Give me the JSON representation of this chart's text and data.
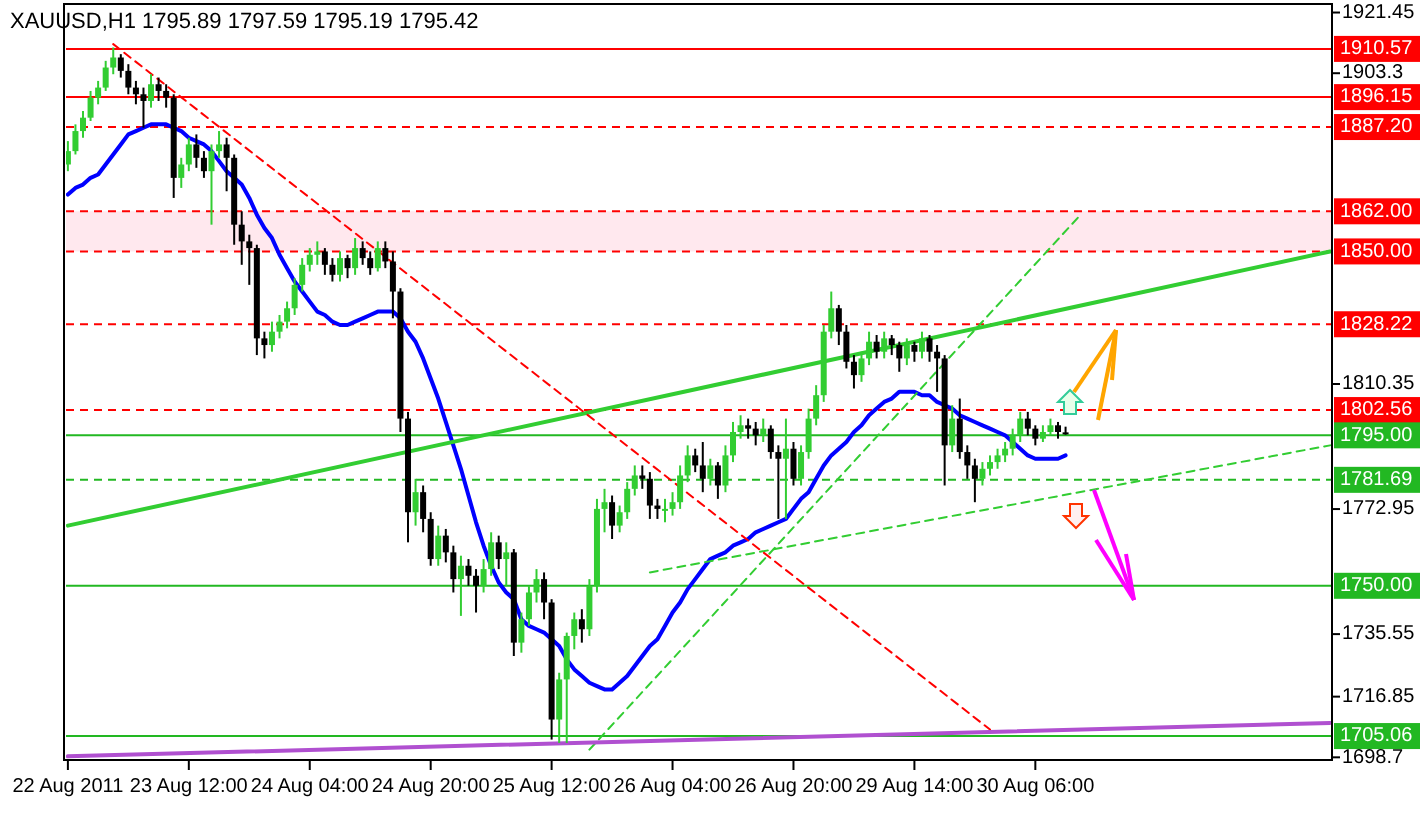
{
  "chart_data": {
    "type": "candlestick",
    "title": "XAUUSD,H1  1795.89 1797.59 1795.19 1795.42",
    "categories": [
      "22 Aug 2011",
      null,
      null,
      null,
      null,
      null,
      null,
      null,
      null,
      null,
      null,
      null,
      null,
      null,
      null,
      null,
      "23 Aug 12:00",
      null,
      null,
      null,
      null,
      null,
      null,
      null,
      null,
      null,
      null,
      null,
      null,
      null,
      null,
      null,
      "24 Aug 04:00",
      null,
      null,
      null,
      null,
      null,
      null,
      null,
      null,
      null,
      null,
      null,
      null,
      null,
      null,
      null,
      "24 Aug 20:00",
      null,
      null,
      null,
      null,
      null,
      null,
      null,
      null,
      null,
      null,
      null,
      null,
      null,
      null,
      null,
      "25 Aug 12:00",
      null,
      null,
      null,
      null,
      null,
      null,
      null,
      null,
      null,
      null,
      null,
      null,
      null,
      null,
      null,
      "26 Aug 04:00",
      null,
      null,
      null,
      null,
      null,
      null,
      null,
      null,
      null,
      null,
      null,
      null,
      null,
      null,
      null,
      "26 Aug 20:00",
      null,
      null,
      null,
      null,
      null,
      null,
      null,
      null,
      null,
      null,
      null,
      null,
      null,
      null,
      null,
      "29 Aug 14:00",
      null,
      null,
      null,
      null,
      null,
      null,
      null,
      null,
      null,
      null,
      null,
      null,
      null,
      null,
      null,
      "30 Aug 06:00",
      null,
      null,
      null,
      null,
      null,
      null,
      null,
      null,
      null,
      null,
      null,
      null,
      null,
      null,
      null,
      null,
      null,
      null,
      null,
      null,
      null,
      null,
      null,
      null,
      null,
      null,
      null,
      null,
      null,
      null,
      null,
      null,
      null,
      null,
      null,
      null,
      null,
      null,
      null
    ],
    "ylim": [
      1697.9,
      1924.0
    ],
    "yticks": [
      1921.45,
      1903.3,
      1810.35,
      1772.95,
      1735.55,
      1716.85,
      1698.7
    ],
    "colors": [
      "#32cd32",
      "#32cd32",
      "#32cd32",
      "#32cd32",
      "#32cd32",
      "#32cd32",
      "#32cd32",
      "#000000",
      "#000000",
      "#000000",
      "#000000",
      "#32cd32",
      "#000000",
      "#000000",
      "#000000",
      "#32cd32",
      "#32cd32",
      "#000000",
      "#000000",
      "#32cd32",
      "#32cd32",
      "#000000",
      "#000000",
      "#000000",
      "#000000",
      "#000000",
      "#000000",
      "#32cd32",
      "#32cd32",
      "#32cd32",
      "#32cd32",
      "#32cd32",
      "#32cd32",
      "#32cd32",
      "#000000",
      "#000000",
      "#32cd32",
      "#000000",
      "#32cd32",
      "#000000",
      "#000000",
      "#32cd32",
      "#000000",
      "#000000",
      "#000000",
      "#000000",
      "#32cd32",
      "#000000",
      "#000000",
      "#32cd32",
      "#000000",
      "#000000",
      "#32cd32",
      "#000000",
      "#000000",
      "#32cd32",
      "#32cd32",
      "#000000",
      "#32cd32",
      "#000000",
      "#32cd32",
      "#32cd32",
      "#32cd32",
      "#000000",
      "#000000",
      "#32cd32",
      "#32cd32",
      "#32cd32",
      "#000000",
      "#32cd32",
      "#32cd32",
      "#32cd32",
      "#000000",
      "#32cd32",
      "#32cd32",
      "#32cd32",
      "#000000",
      "#000000",
      "#000000",
      "#32cd32",
      "#32cd32",
      "#32cd32",
      "#32cd32",
      "#000000",
      "#000000",
      "#32cd32",
      "#000000",
      "#32cd32",
      "#32cd32",
      "#32cd32",
      "#000000",
      "#000000",
      "#32cd32",
      "#000000",
      "#000000",
      "#32cd32",
      "#000000",
      "#32cd32",
      "#32cd32",
      "#32cd32",
      "#32cd32",
      "#32cd32",
      "#000000",
      "#000000",
      "#000000",
      "#32cd32",
      "#32cd32",
      "#000000",
      "#32cd32",
      "#000000",
      "#000000",
      "#32cd32",
      "#000000",
      "#32cd32",
      "#000000",
      "#000000",
      "#000000",
      "#32cd32",
      "#000000",
      "#000000",
      "#000000",
      "#32cd32",
      "#32cd32",
      "#32cd32",
      "#32cd32",
      "#32cd32",
      "#32cd32",
      "#000000",
      "#000000",
      "#32cd32",
      "#32cd32",
      "#000000",
      "#000000",
      null,
      null,
      null,
      null,
      null,
      null,
      null,
      null,
      null,
      null,
      null,
      null,
      null,
      null,
      null,
      null,
      null,
      null,
      null,
      null,
      null,
      null,
      null,
      null,
      null,
      null,
      null,
      null,
      null,
      null,
      null,
      null,
      null,
      null,
      null
    ],
    "ohlc": [
      [
        1876,
        1883,
        1874,
        1880
      ],
      [
        1880,
        1888,
        1879,
        1886
      ],
      [
        1886,
        1892,
        1884,
        1890
      ],
      [
        1890,
        1898,
        1889,
        1896
      ],
      [
        1896,
        1901,
        1894,
        1899
      ],
      [
        1899,
        1907,
        1898,
        1905
      ],
      [
        1905,
        1911,
        1903,
        1908
      ],
      [
        1908,
        1909,
        1902,
        1904
      ],
      [
        1904,
        1906,
        1897,
        1899
      ],
      [
        1899,
        1901,
        1894,
        1897
      ],
      [
        1897,
        1899,
        1887,
        1895
      ],
      [
        1895,
        1903,
        1893,
        1900
      ],
      [
        1900,
        1902,
        1895,
        1898
      ],
      [
        1898,
        1900,
        1893,
        1896
      ],
      [
        1896,
        1897,
        1866,
        1872
      ],
      [
        1872,
        1878,
        1869,
        1876
      ],
      [
        1876,
        1884,
        1874,
        1882
      ],
      [
        1882,
        1885,
        1875,
        1878
      ],
      [
        1878,
        1880,
        1872,
        1874
      ],
      [
        1874,
        1882,
        1858,
        1880
      ],
      [
        1880,
        1886,
        1878,
        1882
      ],
      [
        1882,
        1884,
        1868,
        1878
      ],
      [
        1878,
        1879,
        1852,
        1858
      ],
      [
        1858,
        1862,
        1846,
        1853
      ],
      [
        1853,
        1855,
        1840,
        1851
      ],
      [
        1851,
        1852,
        1819,
        1824
      ],
      [
        1824,
        1826,
        1818,
        1822
      ],
      [
        1822,
        1829,
        1820,
        1826
      ],
      [
        1826,
        1831,
        1824,
        1829
      ],
      [
        1829,
        1835,
        1827,
        1833
      ],
      [
        1833,
        1842,
        1831,
        1840
      ],
      [
        1840,
        1848,
        1838,
        1846
      ],
      [
        1846,
        1851,
        1844,
        1849
      ],
      [
        1849,
        1853,
        1846,
        1850
      ],
      [
        1850,
        1851,
        1843,
        1846
      ],
      [
        1846,
        1848,
        1841,
        1843
      ],
      [
        1843,
        1850,
        1841,
        1848
      ],
      [
        1848,
        1849,
        1842,
        1845
      ],
      [
        1845,
        1854,
        1843,
        1851
      ],
      [
        1851,
        1853,
        1846,
        1848
      ],
      [
        1848,
        1850,
        1843,
        1845
      ],
      [
        1845,
        1853,
        1844,
        1851
      ],
      [
        1851,
        1853,
        1845,
        1847
      ],
      [
        1847,
        1850,
        1830,
        1838
      ],
      [
        1838,
        1839,
        1796,
        1800
      ],
      [
        1800,
        1802,
        1763,
        1772
      ],
      [
        1772,
        1782,
        1768,
        1778
      ],
      [
        1778,
        1780,
        1766,
        1770
      ],
      [
        1770,
        1772,
        1756,
        1758
      ],
      [
        1758,
        1768,
        1756,
        1765
      ],
      [
        1765,
        1767,
        1757,
        1760
      ],
      [
        1760,
        1762,
        1748,
        1752
      ],
      [
        1752,
        1759,
        1741,
        1756
      ],
      [
        1756,
        1758,
        1750,
        1753
      ],
      [
        1753,
        1755,
        1742,
        1750
      ],
      [
        1750,
        1758,
        1748,
        1755
      ],
      [
        1755,
        1766,
        1753,
        1763
      ],
      [
        1763,
        1765,
        1755,
        1758
      ],
      [
        1758,
        1763,
        1750,
        1760
      ],
      [
        1760,
        1761,
        1729,
        1733
      ],
      [
        1733,
        1742,
        1730,
        1740
      ],
      [
        1740,
        1750,
        1738,
        1748
      ],
      [
        1748,
        1755,
        1745,
        1752
      ],
      [
        1752,
        1754,
        1740,
        1745
      ],
      [
        1745,
        1746,
        1704,
        1710
      ],
      [
        1710,
        1724,
        1703,
        1722
      ],
      [
        1722,
        1736,
        1703,
        1735
      ],
      [
        1735,
        1742,
        1731,
        1740
      ],
      [
        1740,
        1743,
        1733,
        1737
      ],
      [
        1737,
        1752,
        1735,
        1750
      ],
      [
        1750,
        1776,
        1748,
        1773
      ],
      [
        1773,
        1779,
        1766,
        1775
      ],
      [
        1775,
        1777,
        1764,
        1768
      ],
      [
        1768,
        1774,
        1766,
        1772
      ],
      [
        1772,
        1781,
        1770,
        1779
      ],
      [
        1779,
        1786,
        1777,
        1783
      ],
      [
        1783,
        1786,
        1779,
        1782
      ],
      [
        1782,
        1784,
        1770,
        1774
      ],
      [
        1774,
        1776,
        1770,
        1773
      ],
      [
        1773,
        1776,
        1769,
        1773
      ],
      [
        1773,
        1778,
        1771,
        1775
      ],
      [
        1775,
        1786,
        1773,
        1783
      ],
      [
        1783,
        1792,
        1781,
        1789
      ],
      [
        1789,
        1791,
        1784,
        1786
      ],
      [
        1786,
        1793,
        1778,
        1782
      ],
      [
        1782,
        1788,
        1780,
        1786
      ],
      [
        1786,
        1787,
        1776,
        1780
      ],
      [
        1780,
        1792,
        1778,
        1789
      ],
      [
        1789,
        1799,
        1787,
        1796
      ],
      [
        1796,
        1801,
        1794,
        1798
      ],
      [
        1798,
        1800,
        1794,
        1797
      ],
      [
        1797,
        1799,
        1792,
        1795
      ],
      [
        1795,
        1800,
        1793,
        1797
      ],
      [
        1797,
        1798,
        1788,
        1790
      ],
      [
        1790,
        1792,
        1770,
        1788
      ],
      [
        1788,
        1800,
        1770,
        1791
      ],
      [
        1791,
        1793,
        1780,
        1782
      ],
      [
        1782,
        1792,
        1780,
        1790
      ],
      [
        1790,
        1803,
        1788,
        1800
      ],
      [
        1800,
        1810,
        1798,
        1807
      ],
      [
        1807,
        1828,
        1805,
        1826
      ],
      [
        1826,
        1838,
        1824,
        1833
      ],
      [
        1833,
        1834,
        1822,
        1826
      ],
      [
        1826,
        1828,
        1815,
        1817
      ],
      [
        1817,
        1819,
        1809,
        1813
      ],
      [
        1813,
        1820,
        1811,
        1818
      ],
      [
        1818,
        1826,
        1816,
        1823
      ],
      [
        1823,
        1825,
        1818,
        1820
      ],
      [
        1820,
        1826,
        1818,
        1824
      ],
      [
        1824,
        1825,
        1819,
        1822
      ],
      [
        1822,
        1823,
        1814,
        1818
      ],
      [
        1818,
        1824,
        1816,
        1822
      ],
      [
        1822,
        1823,
        1817,
        1820
      ],
      [
        1820,
        1826,
        1818,
        1824
      ],
      [
        1824,
        1825,
        1817,
        1820
      ],
      [
        1820,
        1822,
        1808,
        1818
      ],
      [
        1818,
        1819,
        1780,
        1792
      ],
      [
        1792,
        1804,
        1790,
        1800
      ],
      [
        1800,
        1806,
        1788,
        1790
      ],
      [
        1790,
        1792,
        1782,
        1786
      ],
      [
        1786,
        1788,
        1775,
        1782
      ],
      [
        1782,
        1787,
        1780,
        1785
      ],
      [
        1785,
        1789,
        1783,
        1787
      ],
      [
        1787,
        1791,
        1785,
        1789
      ],
      [
        1789,
        1793,
        1787,
        1791
      ],
      [
        1791,
        1797,
        1789,
        1795
      ],
      [
        1795,
        1802,
        1793,
        1800
      ],
      [
        1800,
        1802,
        1795,
        1797
      ],
      [
        1797,
        1798,
        1792,
        1794
      ],
      [
        1794,
        1798,
        1793,
        1796
      ],
      [
        1796,
        1800,
        1795,
        1798
      ],
      [
        1798,
        1799,
        1794,
        1796
      ],
      [
        1795.89,
        1797.59,
        1795.19,
        1795.42
      ],
      null,
      null,
      null,
      null,
      null,
      null,
      null,
      null,
      null,
      null,
      null,
      null,
      null,
      null,
      null,
      null,
      null,
      null,
      null,
      null,
      null,
      null,
      null,
      null,
      null,
      null,
      null,
      null,
      null,
      null,
      null,
      null,
      null,
      null,
      null
    ],
    "series": [
      {
        "type": "line",
        "color": "#0000ff",
        "values": [
          1867,
          1869,
          1870,
          1872,
          1873,
          1876,
          1879,
          1882,
          1885,
          1886,
          1887,
          1888,
          1888,
          1888,
          1887,
          1886,
          1884,
          1883,
          1882,
          1880,
          1877,
          1874,
          1872,
          1870,
          1866,
          1861,
          1857,
          1854,
          1849,
          1845,
          1841,
          1838,
          1835,
          1832,
          1831,
          1829,
          1828,
          1828,
          1829,
          1830,
          1831,
          1832,
          1832,
          1832,
          1830,
          1826,
          1823,
          1818,
          1812,
          1806,
          1799,
          1792,
          1785,
          1777,
          1769,
          1762,
          1756,
          1751,
          1748,
          1746,
          1740,
          1738,
          1737,
          1736,
          1734,
          1732,
          1728,
          1725,
          1723,
          1721,
          1720,
          1719,
          1719,
          1721,
          1723,
          1726,
          1729,
          1732,
          1734,
          1738,
          1742,
          1745,
          1749,
          1752,
          1755,
          1758,
          1759,
          1760,
          1762,
          1763,
          1764,
          1766,
          1767,
          1768,
          1769,
          1770,
          1773,
          1776,
          1778,
          1782,
          1786,
          1789,
          1791,
          1793,
          1796,
          1798,
          1801,
          1803,
          1805,
          1806,
          1808,
          1808,
          1808,
          1807,
          1807,
          1805,
          1804,
          1803,
          1801,
          1800,
          1799,
          1798,
          1797,
          1796,
          1795,
          1793,
          1791,
          1789,
          1788,
          1788,
          1788,
          1788,
          1789,
          null,
          null,
          null,
          null,
          null,
          null,
          null,
          null,
          null,
          null,
          null,
          null,
          null,
          null,
          null,
          null,
          null,
          null,
          null,
          null,
          null,
          null,
          null,
          null,
          null,
          null,
          null,
          null,
          null,
          null,
          null,
          null,
          null,
          null,
          null
        ]
      },
      {
        "type": "line",
        "color": "#32cd32",
        "values": [
          1768,
          null,
          null,
          null,
          null,
          null,
          null,
          null,
          null,
          null,
          null,
          null,
          null,
          null,
          null,
          null,
          null,
          null,
          null,
          null,
          null,
          null,
          null,
          null,
          null,
          null,
          null,
          null,
          null,
          null,
          null,
          null,
          null,
          null,
          null,
          null,
          null,
          null,
          null,
          null,
          null,
          null,
          null,
          null,
          null,
          null,
          null,
          null,
          null,
          null,
          null,
          null,
          null,
          null,
          null,
          null,
          null,
          null,
          null,
          null,
          null,
          null,
          null,
          null,
          null,
          null,
          null,
          null,
          null,
          null,
          null,
          null,
          null,
          null,
          null,
          null,
          null,
          null,
          null,
          null,
          null,
          null,
          null,
          null,
          null,
          null,
          null,
          null,
          null,
          null,
          null,
          null,
          null,
          null,
          null,
          null,
          null,
          null,
          null,
          null,
          null,
          null,
          null,
          null,
          null,
          null,
          null,
          null,
          null,
          null,
          null,
          null,
          null,
          null,
          null,
          null,
          null,
          null,
          null,
          null,
          null,
          null,
          null,
          null,
          null,
          null,
          null,
          null,
          null,
          null,
          null,
          null,
          null,
          null,
          null,
          null,
          null,
          null,
          null,
          null,
          null,
          null,
          null,
          null,
          null,
          null,
          null,
          null,
          null,
          null,
          null,
          null,
          null,
          null,
          null,
          null,
          null,
          null,
          null,
          null,
          null,
          null,
          null,
          null,
          null,
          null,
          null,
          1850
        ]
      },
      {
        "type": "line",
        "color": "#32cd32",
        "line_style": "dashed",
        "values": [
          null,
          null,
          null,
          null,
          null,
          null,
          null,
          null,
          null,
          null,
          null,
          null,
          null,
          null,
          null,
          null,
          null,
          null,
          null,
          null,
          null,
          null,
          null,
          null,
          null,
          null,
          null,
          null,
          null,
          null,
          null,
          null,
          null,
          null,
          null,
          null,
          null,
          null,
          null,
          null,
          null,
          null,
          null,
          null,
          null,
          null,
          null,
          null,
          null,
          null,
          null,
          null,
          null,
          null,
          null,
          null,
          null,
          null,
          null,
          null,
          null,
          null,
          null,
          null,
          null,
          null,
          null,
          null,
          null,
          null,
          null,
          null,
          null,
          null,
          null,
          null,
          null,
          1754,
          null,
          null,
          null,
          null,
          null,
          null,
          null,
          null,
          null,
          null,
          null,
          null,
          null,
          null,
          null,
          null,
          null,
          null,
          null,
          null,
          null,
          null,
          null,
          null,
          null,
          null,
          null,
          null,
          null,
          null,
          null,
          null,
          null,
          null,
          null,
          null,
          null,
          null,
          null,
          null,
          null,
          null,
          null,
          null,
          null,
          null,
          null,
          null,
          null,
          null,
          null,
          null,
          null,
          null,
          null,
          null,
          null,
          null,
          null,
          null,
          null,
          null,
          null,
          null,
          null,
          null,
          null,
          null,
          null,
          null,
          null,
          null,
          null,
          null,
          null,
          null,
          null,
          null,
          null,
          null,
          null,
          null,
          null,
          null,
          null,
          null,
          null,
          null,
          null,
          1792
        ]
      },
      {
        "type": "line",
        "color": "#32cd32",
        "line_style": "dashed",
        "values": [
          null,
          null,
          null,
          null,
          null,
          null,
          null,
          null,
          null,
          null,
          null,
          null,
          null,
          null,
          null,
          null,
          null,
          null,
          null,
          null,
          null,
          null,
          null,
          null,
          null,
          null,
          null,
          null,
          null,
          null,
          null,
          null,
          null,
          null,
          null,
          null,
          null,
          null,
          null,
          null,
          null,
          null,
          null,
          null,
          null,
          null,
          null,
          null,
          null,
          null,
          null,
          null,
          null,
          null,
          null,
          null,
          null,
          null,
          null,
          null,
          null,
          null,
          null,
          null,
          null,
          null,
          null,
          null,
          null,
          1701,
          null,
          null,
          null,
          null,
          null,
          null,
          null,
          null,
          null,
          null,
          null,
          null,
          null,
          null,
          null,
          null,
          null,
          null,
          null,
          null,
          null,
          null,
          null,
          null,
          null,
          null,
          null,
          null,
          null,
          null,
          null,
          null,
          null,
          null,
          null,
          null,
          null,
          null,
          null,
          null,
          null,
          null,
          null,
          null,
          null,
          null,
          null,
          null,
          null,
          null,
          null,
          null,
          null,
          null,
          null,
          null,
          null,
          null,
          null,
          null,
          null,
          null,
          null,
          null,
          1861,
          null,
          null,
          null,
          null,
          null,
          null,
          null,
          null,
          null,
          null,
          null,
          null,
          null,
          null,
          null,
          null,
          null,
          null,
          null,
          null,
          null,
          null,
          null,
          null,
          null,
          null,
          null,
          null,
          null,
          null,
          null,
          null,
          null
        ]
      },
      {
        "type": "line",
        "color": "#ff0000",
        "line_style": "dashed",
        "values": [
          null,
          null,
          null,
          null,
          null,
          null,
          1912,
          null,
          null,
          null,
          null,
          null,
          null,
          null,
          null,
          null,
          null,
          null,
          null,
          null,
          null,
          null,
          null,
          null,
          null,
          null,
          null,
          null,
          null,
          null,
          null,
          null,
          null,
          null,
          null,
          null,
          null,
          null,
          null,
          null,
          null,
          null,
          null,
          null,
          null,
          null,
          null,
          null,
          null,
          null,
          null,
          null,
          null,
          null,
          null,
          null,
          null,
          null,
          null,
          null,
          null,
          null,
          null,
          null,
          null,
          null,
          null,
          null,
          null,
          null,
          null,
          null,
          null,
          null,
          null,
          null,
          null,
          null,
          null,
          null,
          null,
          null,
          null,
          null,
          null,
          null,
          null,
          null,
          null,
          null,
          null,
          null,
          null,
          null,
          null,
          null,
          null,
          null,
          null,
          null,
          null,
          null,
          null,
          null,
          null,
          null,
          null,
          null,
          null,
          null,
          null,
          null,
          null,
          null,
          null,
          null,
          null,
          null,
          null,
          null,
          null,
          null,
          1707,
          null,
          null,
          null,
          null,
          null,
          null,
          null,
          null,
          null,
          null,
          null,
          null,
          null,
          null,
          null,
          null,
          null,
          null,
          null,
          null,
          null,
          null,
          null,
          null,
          null,
          null,
          null,
          null,
          null,
          null,
          null,
          null,
          null,
          null,
          null,
          null,
          null,
          null,
          null,
          null,
          null,
          null,
          null,
          null,
          null
        ]
      },
      {
        "type": "line",
        "color": "#b050d0",
        "values": [
          1699,
          null,
          null,
          null,
          null,
          null,
          null,
          null,
          null,
          null,
          null,
          null,
          null,
          null,
          null,
          null,
          null,
          null,
          null,
          null,
          null,
          null,
          null,
          null,
          null,
          null,
          null,
          null,
          null,
          null,
          null,
          null,
          null,
          null,
          null,
          null,
          null,
          null,
          null,
          null,
          null,
          null,
          null,
          null,
          null,
          null,
          null,
          null,
          null,
          null,
          null,
          null,
          null,
          null,
          null,
          null,
          null,
          null,
          null,
          null,
          null,
          null,
          null,
          null,
          null,
          null,
          null,
          null,
          null,
          null,
          null,
          null,
          null,
          null,
          null,
          null,
          null,
          null,
          null,
          null,
          null,
          null,
          null,
          null,
          null,
          null,
          null,
          null,
          null,
          null,
          null,
          null,
          null,
          null,
          null,
          null,
          null,
          null,
          null,
          null,
          null,
          null,
          null,
          null,
          null,
          null,
          null,
          null,
          null,
          null,
          null,
          null,
          null,
          null,
          null,
          null,
          null,
          null,
          null,
          null,
          null,
          null,
          null,
          null,
          null,
          null,
          null,
          null,
          null,
          null,
          null,
          null,
          null,
          null,
          null,
          null,
          null,
          null,
          null,
          null,
          null,
          null,
          null,
          null,
          null,
          null,
          null,
          null,
          null,
          null,
          null,
          null,
          null,
          null,
          null,
          null,
          null,
          null,
          null,
          null,
          null,
          null,
          null,
          null,
          null,
          null,
          null,
          1709
        ]
      }
    ],
    "ref_lines": [
      {
        "axis": "y",
        "value": 1910.57,
        "label": "1910.57",
        "color": "#ff0000",
        "line_style": "solid"
      },
      {
        "axis": "y",
        "value": 1896.15,
        "label": "1896.15",
        "color": "#ff0000",
        "line_style": "solid"
      },
      {
        "axis": "y",
        "value": 1887.2,
        "label": "1887.20",
        "color": "#ff0000",
        "line_style": "dashed"
      },
      {
        "axis": "y",
        "value": 1862.0,
        "label": "1862.00",
        "color": "#ff0000",
        "line_style": "dashed"
      },
      {
        "axis": "y",
        "value": 1850.0,
        "label": "1850.00",
        "color": "#ff0000",
        "line_style": "dashed"
      },
      {
        "axis": "y",
        "value": 1828.22,
        "label": "1828.22",
        "color": "#ff0000",
        "line_style": "dashed"
      },
      {
        "axis": "y",
        "value": 1802.56,
        "label": "1802.56",
        "color": "#ff0000",
        "line_style": "dashed"
      },
      {
        "axis": "y",
        "value": 1795.0,
        "label": "1795.00",
        "color": "#22b822",
        "line_style": "solid"
      },
      {
        "axis": "y",
        "value": 1781.69,
        "label": "1781.69",
        "color": "#22b822",
        "line_style": "dashed"
      },
      {
        "axis": "y",
        "value": 1750.0,
        "label": "1750.00",
        "color": "#22b822",
        "line_style": "solid"
      },
      {
        "axis": "y",
        "value": 1705.06,
        "label": "1705.06",
        "color": "#22b822",
        "line_style": "solid"
      }
    ],
    "bands": [
      {
        "axis": "y",
        "from": 1850,
        "to": 1862,
        "color": "#ffe8ee"
      }
    ]
  }
}
